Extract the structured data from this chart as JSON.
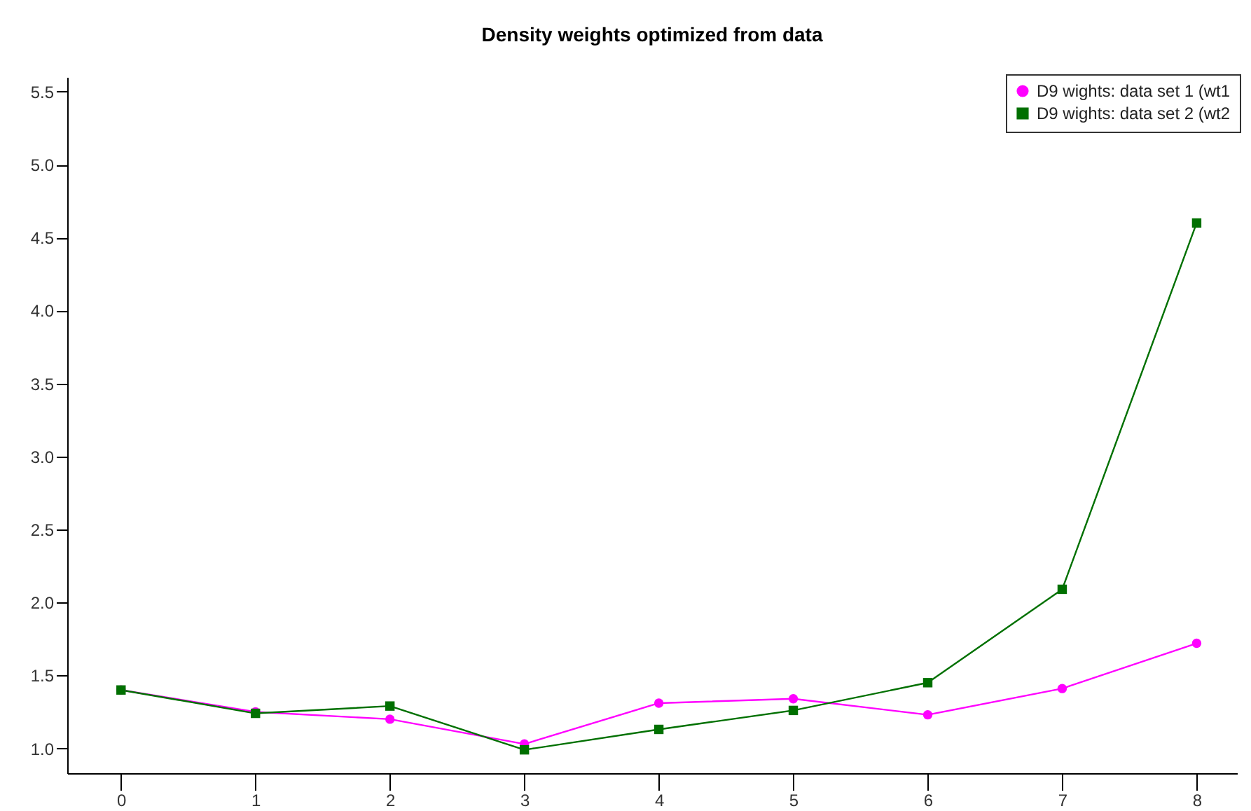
{
  "chart_data": {
    "type": "line",
    "title": "Density weights optimized from data",
    "x": [
      0,
      1,
      2,
      3,
      4,
      5,
      6,
      7,
      8
    ],
    "series": [
      {
        "name": "D9 wights: data set 1 (wt1",
        "color": "#ff00ff",
        "marker": "circle",
        "values": [
          1.4,
          1.25,
          1.2,
          1.03,
          1.31,
          1.34,
          1.23,
          1.41,
          1.72
        ]
      },
      {
        "name": "D9 wights: data set 2 (wt2",
        "color": "#007000",
        "marker": "square",
        "values": [
          1.4,
          1.24,
          1.29,
          0.99,
          1.13,
          1.26,
          1.45,
          2.09,
          4.6
        ]
      }
    ],
    "xlim": [
      -0.4,
      8.3
    ],
    "xticks": [
      0,
      1,
      2,
      3,
      4,
      5,
      6,
      7,
      8
    ],
    "ylim": [
      0.83,
      5.6
    ],
    "yticks": [
      {
        "value": 1,
        "label": "1.0"
      },
      {
        "value": 1.5,
        "label": "1.5"
      },
      {
        "value": 2,
        "label": "2.0"
      },
      {
        "value": 2.5,
        "label": "2.5"
      },
      {
        "value": 3,
        "label": "3.0"
      },
      {
        "value": 3.5,
        "label": "3.5"
      },
      {
        "value": 4,
        "label": "4.0"
      },
      {
        "value": 4.5,
        "label": "4.5"
      },
      {
        "value": 5,
        "label": "5.0"
      },
      {
        "value": 5.5,
        "label": "5.5"
      }
    ],
    "grid": false,
    "legend": "top right"
  }
}
